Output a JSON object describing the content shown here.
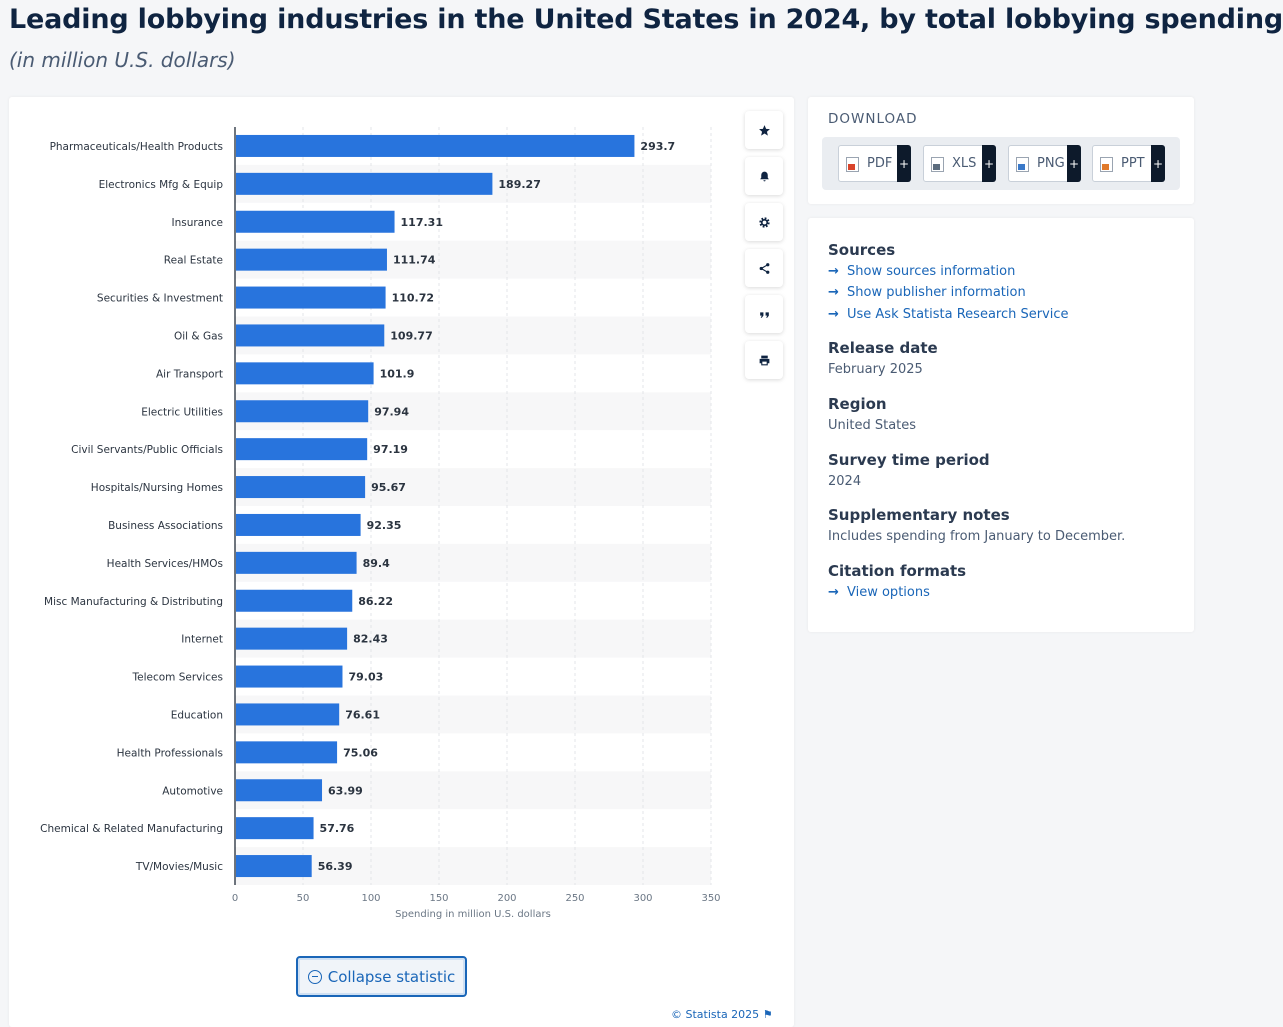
{
  "page": {
    "title": "Leading lobbying industries in the United States in 2024, by total lobbying spending",
    "subtitle": "(in million U.S. dollars)"
  },
  "chart_data": {
    "type": "bar",
    "orientation": "horizontal",
    "categories": [
      "Pharmaceuticals/Health Products",
      "Electronics Mfg & Equip",
      "Insurance",
      "Real Estate",
      "Securities & Investment",
      "Oil & Gas",
      "Air Transport",
      "Electric Utilities",
      "Civil Servants/Public Officials",
      "Hospitals/Nursing Homes",
      "Business Associations",
      "Health Services/HMOs",
      "Misc Manufacturing & Distributing",
      "Internet",
      "Telecom Services",
      "Education",
      "Health Professionals",
      "Automotive",
      "Chemical & Related Manufacturing",
      "TV/Movies/Music"
    ],
    "values": [
      293.7,
      189.27,
      117.31,
      111.74,
      110.72,
      109.77,
      101.9,
      97.94,
      97.19,
      95.67,
      92.35,
      89.4,
      86.22,
      82.43,
      79.03,
      76.61,
      75.06,
      63.99,
      57.76,
      56.39
    ],
    "value_labels": [
      "293.7",
      "189.27",
      "117.31",
      "111.74",
      "110.72",
      "109.77",
      "101.9",
      "97.94",
      "97.19",
      "95.67",
      "92.35",
      "89.4",
      "86.22",
      "82.43",
      "79.03",
      "76.61",
      "75.06",
      "63.99",
      "57.76",
      "56.39"
    ],
    "xlabel": "Spending in million U.S. dollars",
    "xlim": [
      0,
      350
    ],
    "xticks": [
      0,
      50,
      100,
      150,
      200,
      250,
      300,
      350
    ],
    "bar_color": "#2874dd",
    "grid": true
  },
  "actions": {
    "collapse_label": "Collapse statistic",
    "copyright": "© Statista 2025"
  },
  "download": {
    "heading": "DOWNLOAD",
    "formats": [
      {
        "label": "PDF",
        "color": "#d9442b"
      },
      {
        "label": "XLS",
        "color": "#5b6b7d"
      },
      {
        "label": "PNG",
        "color": "#3a79c9"
      },
      {
        "label": "PPT",
        "color": "#e0792a"
      }
    ],
    "plus": "+"
  },
  "info": {
    "sources_heading": "Sources",
    "links": [
      "Show sources information",
      "Show publisher information",
      "Use Ask Statista Research Service"
    ],
    "release_heading": "Release date",
    "release_value": "February 2025",
    "region_heading": "Region",
    "region_value": "United States",
    "survey_heading": "Survey time period",
    "survey_value": "2024",
    "notes_heading": "Supplementary notes",
    "notes_value": "Includes spending from January to December.",
    "citation_heading": "Citation formats",
    "citation_link": "View options"
  },
  "colors": {
    "accent": "#1a66b8",
    "title": "#0f2441"
  }
}
